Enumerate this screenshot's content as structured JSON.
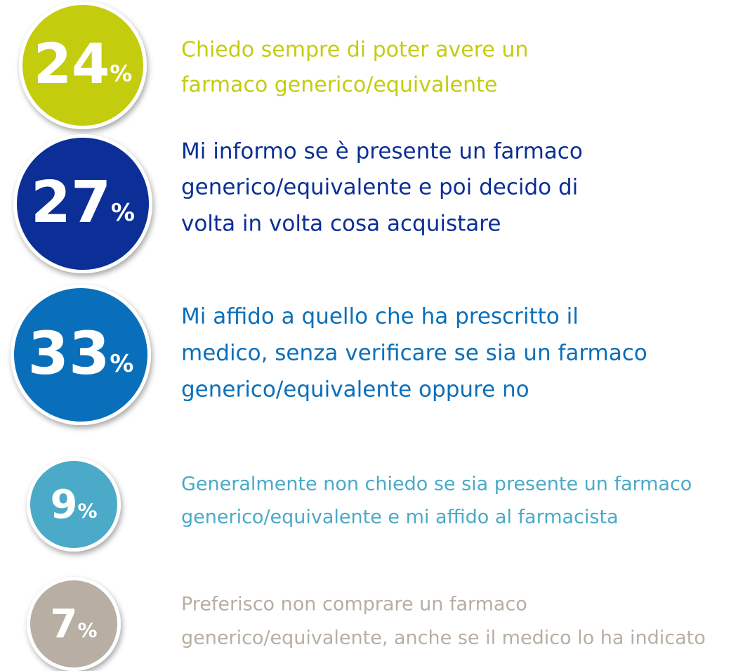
{
  "unit": "%",
  "items": [
    {
      "value": 24,
      "color": "#c4cc0e",
      "lines": [
        "Chiedo sempre di poter avere un",
        "farmaco generico/equivalente"
      ]
    },
    {
      "value": 27,
      "color": "#0b2f96",
      "lines": [
        "Mi informo se è presente un farmaco",
        "generico/equivalente e poi decido di",
        "volta in volta cosa acquistare"
      ]
    },
    {
      "value": 33,
      "color": "#0a6fba",
      "lines": [
        "Mi affido a quello che ha prescritto il",
        "medico, senza verificare se sia un farmaco",
        "generico/equivalente oppure no"
      ]
    },
    {
      "value": 9,
      "color": "#4aaac8",
      "lines": [
        "Generalmente non chiedo se sia presente un farmaco",
        "generico/equivalente e mi affido al farmacista"
      ]
    },
    {
      "value": 7,
      "color": "#b8aea3",
      "lines": [
        "Preferisco non comprare un farmaco",
        "generico/equivalente, anche se il medico lo ha indicato"
      ]
    }
  ]
}
